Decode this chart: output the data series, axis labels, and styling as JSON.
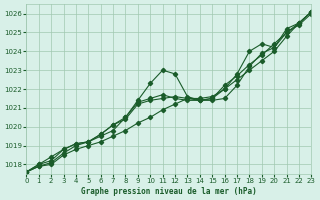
{
  "bg_color": "#d8f0e8",
  "grid_color": "#a0c8b0",
  "line_color": "#1a5c2a",
  "title": "Graphe pression niveau de la mer (hPa)",
  "xlabel": "Graphe pression niveau de la mer (hPa)",
  "ylim": [
    1017.5,
    1026.5
  ],
  "xlim": [
    0,
    23
  ],
  "yticks": [
    1018,
    1019,
    1020,
    1021,
    1022,
    1023,
    1024,
    1025,
    1026
  ],
  "xticks": [
    0,
    1,
    2,
    3,
    4,
    5,
    6,
    7,
    8,
    9,
    10,
    11,
    12,
    13,
    14,
    15,
    16,
    17,
    18,
    19,
    20,
    21,
    22,
    23
  ],
  "line1": [
    1017.6,
    1017.9,
    1018.0,
    1018.5,
    1018.8,
    1019.0,
    1019.2,
    1019.5,
    1019.8,
    1020.2,
    1020.5,
    1020.9,
    1021.2,
    1021.5,
    1021.5,
    1021.6,
    1022.0,
    1022.5,
    1023.0,
    1023.5,
    1024.0,
    1024.8,
    1025.5,
    1026.1
  ],
  "line2": [
    1017.6,
    1017.9,
    1018.1,
    1018.6,
    1019.0,
    1019.2,
    1019.5,
    1019.8,
    1020.5,
    1021.4,
    1022.3,
    1023.0,
    1022.8,
    1021.6,
    1021.4,
    1021.5,
    1022.2,
    1022.7,
    1023.3,
    1023.8,
    1024.4,
    1025.0,
    1025.5,
    1026.1
  ],
  "line3": [
    1017.6,
    1018.0,
    1018.2,
    1018.8,
    1019.1,
    1019.2,
    1019.6,
    1020.1,
    1020.4,
    1021.2,
    1021.4,
    1021.5,
    1021.6,
    1021.5,
    1021.4,
    1021.4,
    1021.5,
    1022.2,
    1023.2,
    1023.9,
    1024.2,
    1025.0,
    1025.4,
    1026.0
  ],
  "line4": [
    1017.6,
    1018.0,
    1018.4,
    1018.8,
    1019.1,
    1019.2,
    1019.6,
    1020.1,
    1020.5,
    1021.3,
    1021.5,
    1021.7,
    1021.5,
    1021.4,
    1021.4,
    1021.5,
    1022.0,
    1022.8,
    1024.0,
    1024.4,
    1024.2,
    1025.2,
    1025.5,
    1026.1
  ]
}
